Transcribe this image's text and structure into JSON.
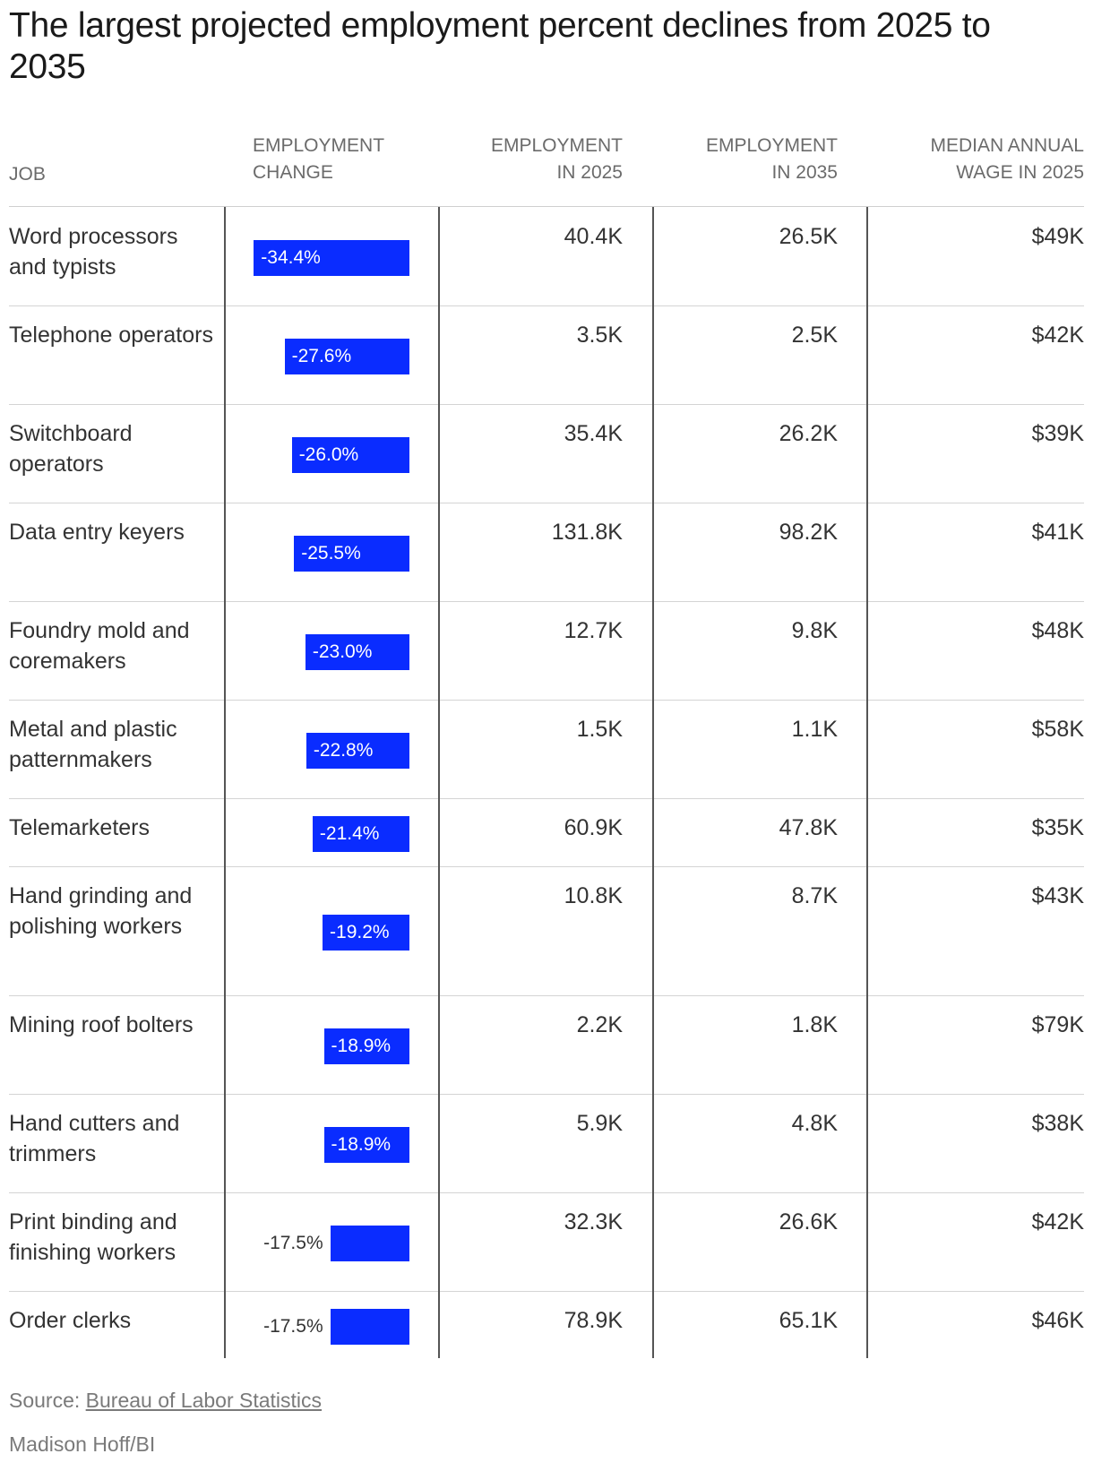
{
  "title": "The largest projected employment percent declines from 2025 to 2035",
  "headers": {
    "job": "JOB",
    "change_line1": "EMPLOYMENT",
    "change_line2": "CHANGE",
    "emp2025_line1": "EMPLOYMENT",
    "emp2025_line2": "IN 2025",
    "emp2035_line1": "EMPLOYMENT",
    "emp2035_line2": "IN 2035",
    "wage_line1": "MEDIAN ANNUAL",
    "wage_line2": "WAGE IN 2025"
  },
  "colors": {
    "bar": "#0a2cff"
  },
  "chart_data": {
    "type": "table",
    "title": "The largest projected employment percent declines from 2025 to 2035",
    "columns": [
      "JOB",
      "EMPLOYMENT CHANGE",
      "EMPLOYMENT IN 2025",
      "EMPLOYMENT IN 2035",
      "MEDIAN ANNUAL WAGE IN 2025"
    ],
    "rows": [
      {
        "job": "Word processors and typists",
        "change": -34.4,
        "change_label": "-34.4%",
        "emp2025": "40.4K",
        "emp2035": "26.5K",
        "wage": "$49K"
      },
      {
        "job": "Telephone operators",
        "change": -27.6,
        "change_label": "-27.6%",
        "emp2025": "3.5K",
        "emp2035": "2.5K",
        "wage": "$42K"
      },
      {
        "job": "Switchboard operators",
        "change": -26.0,
        "change_label": "-26.0%",
        "emp2025": "35.4K",
        "emp2035": "26.2K",
        "wage": "$39K"
      },
      {
        "job": "Data entry keyers",
        "change": -25.5,
        "change_label": "-25.5%",
        "emp2025": "131.8K",
        "emp2035": "98.2K",
        "wage": "$41K"
      },
      {
        "job": "Foundry mold and coremakers",
        "change": -23.0,
        "change_label": "-23.0%",
        "emp2025": "12.7K",
        "emp2035": "9.8K",
        "wage": "$48K"
      },
      {
        "job": "Metal and plastic patternmakers",
        "change": -22.8,
        "change_label": "-22.8%",
        "emp2025": "1.5K",
        "emp2035": "1.1K",
        "wage": "$58K"
      },
      {
        "job": "Telemarketers",
        "change": -21.4,
        "change_label": "-21.4%",
        "emp2025": "60.9K",
        "emp2035": "47.8K",
        "wage": "$35K"
      },
      {
        "job": "Hand grinding and polishing workers",
        "change": -19.2,
        "change_label": "-19.2%",
        "emp2025": "10.8K",
        "emp2035": "8.7K",
        "wage": "$43K"
      },
      {
        "job": "Mining roof bolters",
        "change": -18.9,
        "change_label": "-18.9%",
        "emp2025": "2.2K",
        "emp2035": "1.8K",
        "wage": "$79K"
      },
      {
        "job": "Hand cutters and trimmers",
        "change": -18.9,
        "change_label": "-18.9%",
        "emp2025": "5.9K",
        "emp2035": "4.8K",
        "wage": "$38K"
      },
      {
        "job": "Print binding and finishing workers",
        "change": -17.5,
        "change_label": "-17.5%",
        "emp2025": "32.3K",
        "emp2035": "26.6K",
        "wage": "$42K"
      },
      {
        "job": "Order clerks",
        "change": -17.5,
        "change_label": "-17.5%",
        "emp2025": "78.9K",
        "emp2035": "65.1K",
        "wage": "$46K"
      }
    ]
  },
  "footer": {
    "source_prefix": "Source: ",
    "source_link": "Bureau of Labor Statistics",
    "credit": "Madison Hoff/BI"
  }
}
